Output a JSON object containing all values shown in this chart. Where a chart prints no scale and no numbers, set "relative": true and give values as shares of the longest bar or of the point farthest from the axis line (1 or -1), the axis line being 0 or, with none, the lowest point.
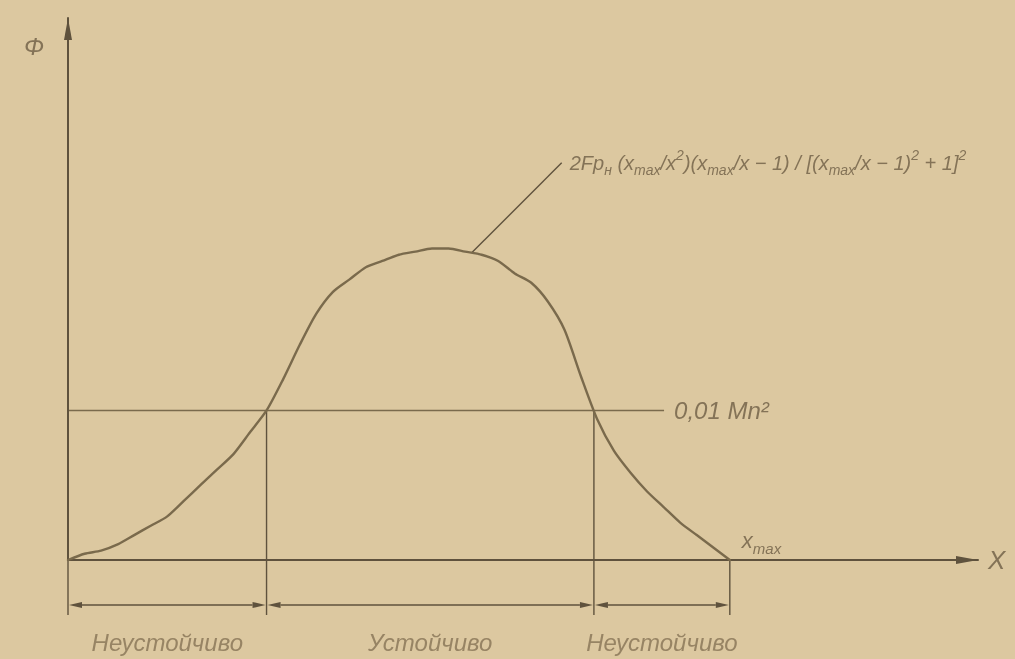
{
  "chart_data": {
    "type": "line",
    "relative": true,
    "xlabel": "X",
    "color": "#7a6a4c",
    "marker": "none",
    "line_style": "solid",
    "categories": [
      null,
      null,
      null,
      null,
      null,
      null,
      null,
      null,
      null,
      null,
      null,
      null,
      null,
      null,
      null,
      null,
      null,
      null,
      null,
      null,
      null,
      null,
      null,
      null,
      null,
      null,
      null,
      null,
      null,
      null,
      null,
      null,
      null,
      null,
      null,
      null,
      null,
      null,
      null,
      null,
      null,
      null,
      null,
      null,
      null,
      null,
      null,
      null,
      null,
      null,
      null,
      null,
      null,
      null,
      null,
      null
    ],
    "values": [
      0,
      0.02,
      0.03,
      0.05,
      0.08,
      0.11,
      0.14,
      0.19,
      0.24,
      0.29,
      0.34,
      0.41,
      0.48,
      0.58,
      0.69,
      0.79,
      0.86,
      0.9,
      0.94,
      0.96,
      0.98,
      0.99,
      1,
      1,
      0.99,
      0.98,
      0.96,
      0.92,
      0.89,
      0.83,
      0.74,
      0.59,
      0.45,
      0.35,
      0.28,
      0.22,
      0.17,
      0.12,
      0.08,
      0.04,
      0,
      null,
      null,
      null,
      null,
      null,
      null,
      null,
      null,
      null,
      null,
      null,
      null,
      null,
      null,
      null
    ],
    "ref_lines": [
      {
        "axis": "y",
        "value": 0.48,
        "label": "0,01 Mn²"
      }
    ],
    "annotations": [
      "Φ",
      "2Fp$_{н}$ (x$_{max}$/x$^{2}$)(x$_{max}$/x − 1) / [(x$_{max}$/x − 1)$^{2}$ + 1]$^{2}$",
      "x$_{max}$",
      "Неустойчиво",
      "Устойчиво",
      "Неустойчиво"
    ]
  }
}
